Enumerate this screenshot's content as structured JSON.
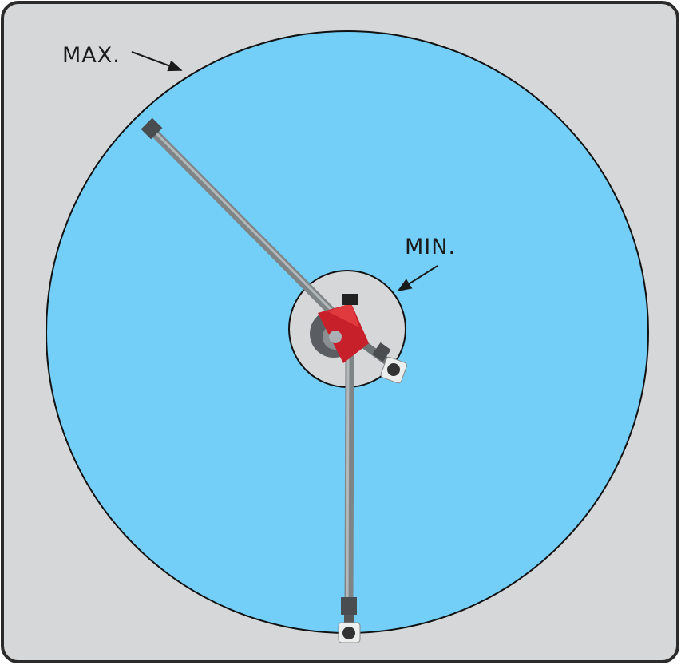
{
  "labels": {
    "max": "MAX.",
    "min": "MIN."
  }
}
